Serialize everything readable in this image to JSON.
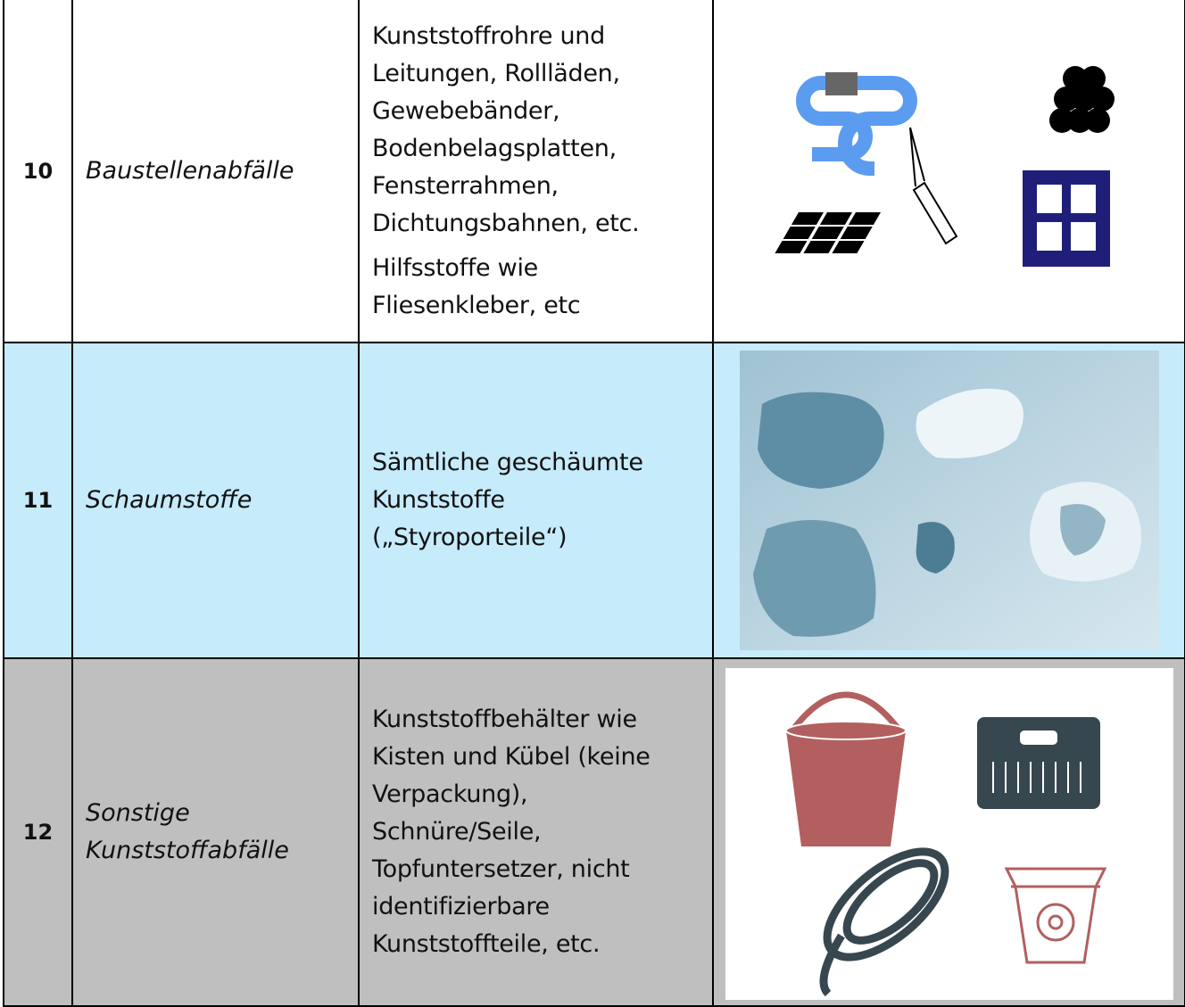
{
  "table": {
    "rows": [
      {
        "number": "10",
        "name": [
          "Baustellenabfälle"
        ],
        "description": [
          [
            "Kunststoffrohre und",
            "Leitungen, Rollläden,",
            "Gewebebänder,",
            "Bodenbelagsplatten,",
            "Fensterrahmen,",
            "Dichtungsbahnen, etc."
          ],
          [
            "Hilfsstoffe wie",
            "Fliesenkleber, etc"
          ]
        ]
      },
      {
        "number": "11",
        "name": [
          "Schaumstoffe"
        ],
        "description": [
          [
            "Sämtliche geschäumte",
            "Kunststoffe",
            "(„Styroporteile“)"
          ]
        ]
      },
      {
        "number": "12",
        "name": [
          "Sonstige",
          "Kunststoffabfälle"
        ],
        "description": [
          [
            "Kunststoffbehälter wie",
            "Kisten und Kübel (keine",
            "Verpackung),",
            "Schnüre/Seile,",
            "Topfuntersetzer, nicht",
            "identifizierbare",
            "Kunststoffteile, etc."
          ]
        ]
      }
    ]
  }
}
